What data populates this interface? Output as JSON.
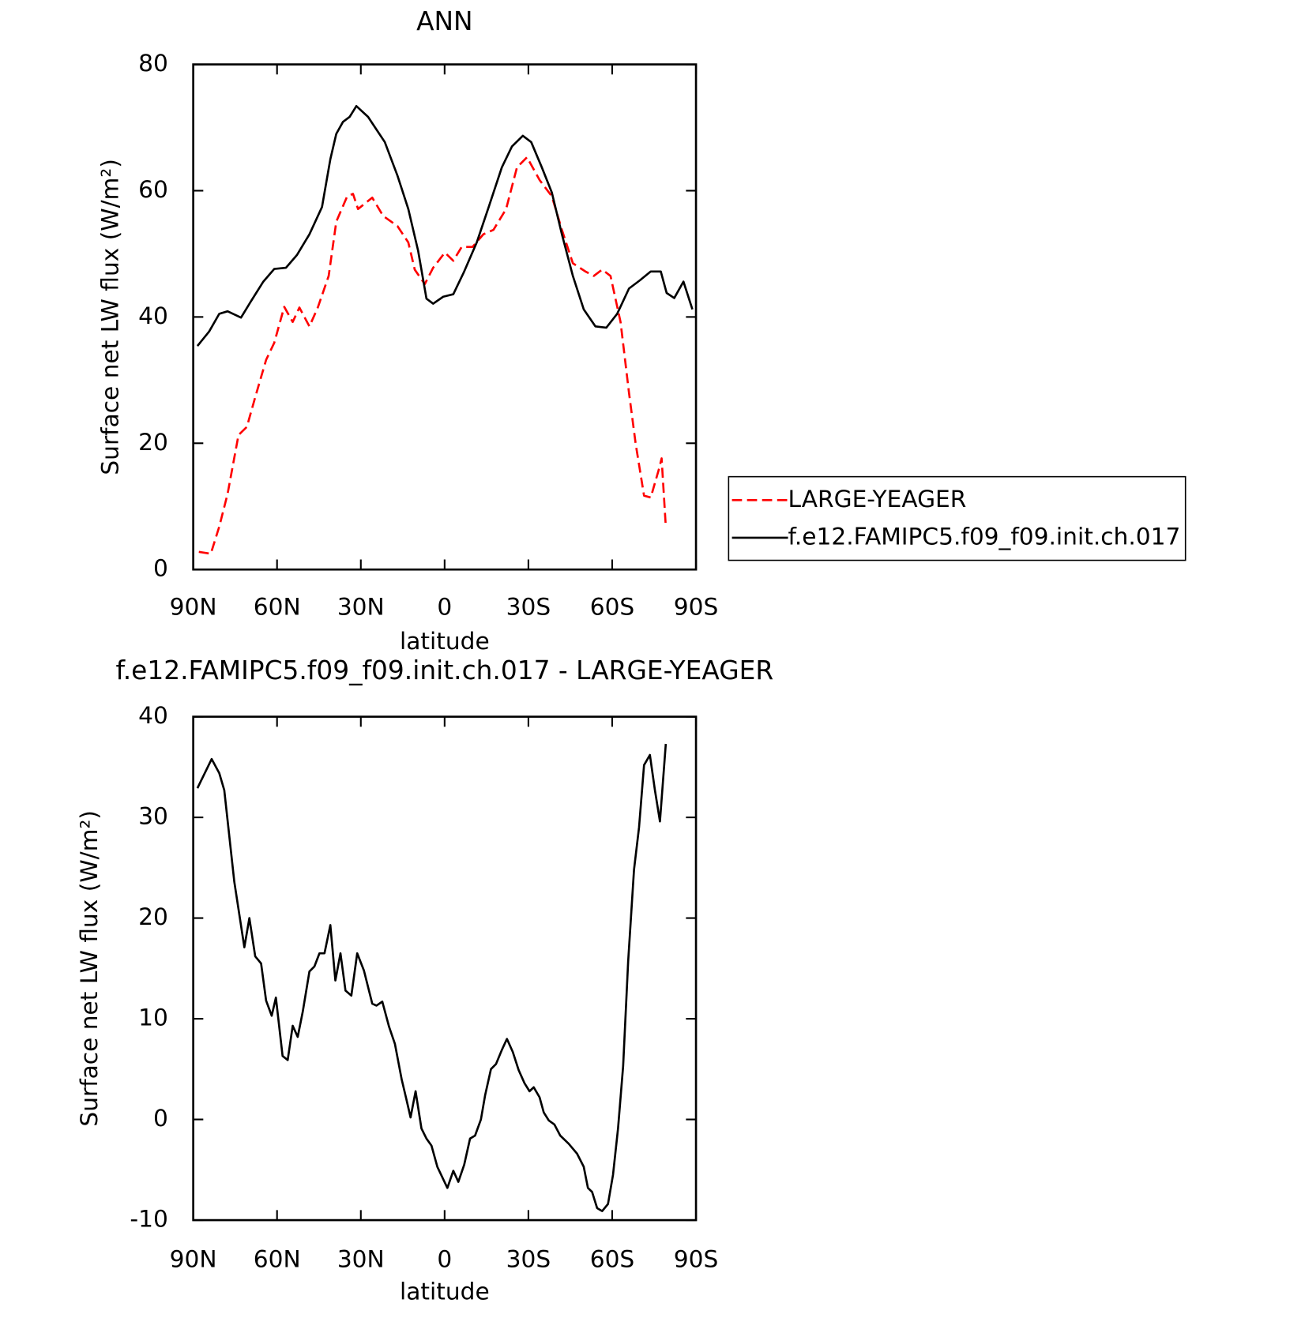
{
  "chart_data": [
    {
      "type": "line",
      "title": "ANN",
      "xlabel": "latitude",
      "ylabel": "Surface net LW flux (W/m²)",
      "xlim": [
        90,
        -90
      ],
      "xticks": [
        {
          "value": 90,
          "label": "90N"
        },
        {
          "value": 60,
          "label": "60N"
        },
        {
          "value": 30,
          "label": "30N"
        },
        0,
        {
          "value": -30,
          "label": "30S"
        },
        {
          "value": -60,
          "label": "60S"
        },
        {
          "value": -90,
          "label": "90S"
        }
      ],
      "ylim": [
        0,
        80
      ],
      "yticks": [
        0,
        20,
        40,
        60,
        80
      ],
      "legend": "right",
      "series": [
        {
          "name": "LARGE-YEAGER",
          "color": "#ff0000",
          "dash": true,
          "x": [
            88,
            83.7,
            80.7,
            77.7,
            73.8,
            70.8,
            67.8,
            63.9,
            61,
            57.4,
            54.4,
            52,
            48.4,
            45.4,
            41.5,
            38.8,
            34.9,
            32.8,
            31,
            25.9,
            22,
            16.9,
            13,
            10.7,
            7.1,
            4.1,
            -0.1,
            -3.1,
            -6.1,
            -10,
            -13.9,
            -17.5,
            -22,
            -25.9,
            -29.5,
            -34,
            -38.4,
            -42,
            -45.9,
            -50.4,
            -53.4,
            -56.4,
            -59.4,
            -63,
            -66,
            -68.4,
            -71.4,
            -73.8,
            -76.8,
            -77.7,
            -79.2
          ],
          "values": [
            2.8,
            2.5,
            6.8,
            12,
            21.3,
            22.6,
            27.3,
            33.2,
            35.9,
            41.6,
            39.2,
            41.5,
            38.5,
            41.5,
            46.5,
            55.1,
            59.1,
            59.5,
            57.1,
            58.9,
            56,
            54.4,
            51.8,
            47.5,
            45.2,
            47.8,
            50.2,
            48.9,
            51.1,
            51.1,
            53.1,
            53.8,
            57.1,
            63.7,
            65.3,
            61.7,
            59.1,
            53.8,
            48.5,
            47.2,
            46.5,
            47.5,
            46.5,
            39.2,
            28,
            19.9,
            11.7,
            11.4,
            16,
            17.6,
            6.8
          ]
        },
        {
          "name": "f.e12.FAMIPC5.f09_f09.init.ch.017",
          "color": "#000000",
          "dash": false,
          "x": [
            88.5,
            84.3,
            80.7,
            77.7,
            72.9,
            69.3,
            64.9,
            61,
            56.8,
            52.9,
            48.4,
            43.9,
            40.9,
            38.8,
            36.4,
            34,
            31.6,
            27.4,
            24.4,
            21.4,
            16.9,
            13,
            9.5,
            6.5,
            4.1,
            0.5,
            -3.1,
            -7,
            -11.5,
            -16,
            -20.5,
            -24.1,
            -28,
            -31,
            -34.8,
            -38.4,
            -42,
            -45.9,
            -49.8,
            -54,
            -57.9,
            -61.8,
            -66,
            -69.9,
            -73.8,
            -77.4,
            -79.5,
            -82.2,
            -85.5,
            -88.7
          ],
          "values": [
            35.4,
            37.7,
            40.5,
            40.9,
            39.9,
            42.5,
            45.6,
            47.6,
            47.8,
            49.8,
            53.1,
            57.4,
            65,
            69,
            70.9,
            71.7,
            73.4,
            71.7,
            69.7,
            67.7,
            62.4,
            57.1,
            50.5,
            42.9,
            42.1,
            43.2,
            43.6,
            47.2,
            51.8,
            57.7,
            63.7,
            67,
            68.7,
            67.7,
            63.7,
            59.7,
            53.1,
            46.5,
            41.2,
            38.5,
            38.3,
            40.5,
            44.5,
            45.8,
            47.2,
            47.2,
            43.8,
            43,
            45.6,
            41.2
          ]
        }
      ]
    },
    {
      "type": "line",
      "title": "f.e12.FAMIPC5.f09_f09.init.ch.017 - LARGE-YEAGER",
      "xlabel": "latitude",
      "ylabel": "Surface net LW flux (W/m²)",
      "xlim": [
        90,
        -90
      ],
      "xticks": [
        {
          "value": 90,
          "label": "90N"
        },
        {
          "value": 60,
          "label": "60N"
        },
        {
          "value": 30,
          "label": "30N"
        },
        0,
        {
          "value": -30,
          "label": "30S"
        },
        {
          "value": -60,
          "label": "60S"
        },
        {
          "value": -90,
          "label": "90S"
        }
      ],
      "ylim": [
        -10,
        40
      ],
      "yticks": [
        -10,
        0,
        10,
        20,
        30,
        40
      ],
      "series": [
        {
          "color": "#000000",
          "dash": false,
          "x": [
            88.5,
            83.4,
            80.7,
            78.9,
            75.3,
            71.7,
            69.9,
            67.8,
            65.7,
            63.9,
            61.9,
            60.4,
            58,
            56.2,
            54.4,
            52.6,
            50.8,
            48.4,
            46.6,
            44.8,
            43,
            40.9,
            39.1,
            37.3,
            35.5,
            33.4,
            31.3,
            28.9,
            25.9,
            24.4,
            22.3,
            19.9,
            17.8,
            15.4,
            13.7,
            12.2,
            10.4,
            8.3,
            6.5,
            4.7,
            2.6,
            -1,
            -3.1,
            -4.9,
            -7,
            -9.1,
            -10.9,
            -13,
            -14.5,
            -16.6,
            -18.4,
            -20.5,
            -22.3,
            -24.4,
            -26.5,
            -28.6,
            -30.4,
            -31.9,
            -34,
            -35.5,
            -37.3,
            -39.3,
            -41.4,
            -44.4,
            -47.4,
            -49.8,
            -51.3,
            -52.8,
            -54.6,
            -56.4,
            -58.5,
            -60.3,
            -62.1,
            -63.9,
            -65.7,
            -67.8,
            -69.6,
            -71.4,
            -73.5,
            -75.3,
            -77.1,
            -79.2
          ],
          "values": [
            32.9,
            35.8,
            34.4,
            32.7,
            23.6,
            17.1,
            20,
            16.2,
            15.5,
            11.8,
            10.3,
            12.1,
            6.3,
            5.9,
            9.3,
            8.2,
            10.7,
            14.7,
            15.2,
            16.5,
            16.5,
            19.3,
            13.8,
            16.5,
            12.8,
            12.3,
            16.5,
            14.8,
            11.5,
            11.3,
            11.7,
            9.2,
            7.5,
            4,
            2,
            0.2,
            2.8,
            -0.9,
            -1.9,
            -2.6,
            -4.7,
            -6.8,
            -5.1,
            -6.2,
            -4.5,
            -1.9,
            -1.6,
            0,
            2.4,
            5,
            5.5,
            6.9,
            8,
            6.7,
            4.9,
            3.6,
            2.8,
            3.2,
            2.2,
            0.7,
            -0.1,
            -0.5,
            -1.6,
            -2.4,
            -3.4,
            -4.7,
            -6.8,
            -7.2,
            -8.8,
            -9.1,
            -8.4,
            -5.5,
            -0.9,
            5.3,
            15.7,
            24.8,
            29,
            35.2,
            36.2,
            32.7,
            29.6,
            37.3
          ]
        }
      ]
    }
  ]
}
